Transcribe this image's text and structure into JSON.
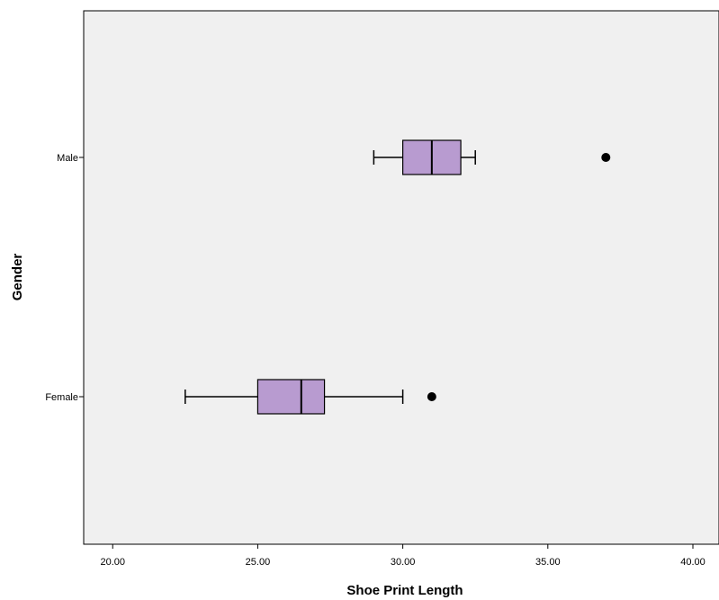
{
  "chart_data": {
    "type": "boxplot",
    "orientation": "horizontal",
    "xlabel": "Shoe Print Length",
    "ylabel": "Gender",
    "xlim": [
      19.0,
      40.9
    ],
    "xticks": [
      20,
      25,
      30,
      35,
      40
    ],
    "xtick_labels": [
      "20.00",
      "25.00",
      "30.00",
      "35.00",
      "40.00"
    ],
    "grid": false,
    "box_color": "#b89bd0",
    "plot_background": "#f0f0f0",
    "categories": [
      "Male",
      "Female"
    ],
    "boxes": [
      {
        "category": "Male",
        "whisker_low": 29.0,
        "q1": 30.0,
        "median": 31.0,
        "q3": 32.0,
        "whisker_high": 32.5,
        "outliers": [
          37.0
        ]
      },
      {
        "category": "Female",
        "whisker_low": 22.5,
        "q1": 25.0,
        "median": 26.5,
        "q3": 27.3,
        "whisker_high": 30.0,
        "outliers": [
          31.0
        ]
      }
    ]
  }
}
